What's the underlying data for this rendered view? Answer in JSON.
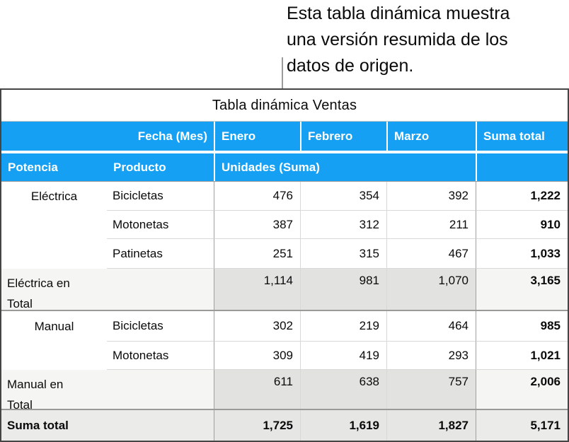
{
  "callout": {
    "lines": [
      "Esta tabla dinámica muestra",
      "una versión resumida de los",
      "datos de origen."
    ]
  },
  "colors": {
    "header_blue": "#16a0f4",
    "header_text": "#ffffff",
    "total_cell_gray": "#e2e2e0",
    "total_side_gray": "#f5f5f3",
    "grand_cell_gray": "#e6e6e4",
    "grand_side_gray": "#ebebe9"
  },
  "table": {
    "title": "Tabla dinámica Ventas",
    "header_row1": {
      "fecha": "Fecha (Mes)",
      "months": [
        "Enero",
        "Febrero",
        "Marzo"
      ],
      "suma": "Suma total"
    },
    "header_row2": {
      "potencia": "Potencia",
      "producto": "Producto",
      "unidades": "Unidades (Suma)",
      "empty": ""
    },
    "rows": [
      {
        "group": "Eléctrica",
        "product": "Bicicletas",
        "values": [
          "476",
          "354",
          "392"
        ],
        "total": "1,222"
      },
      {
        "group": "",
        "product": "Motonetas",
        "values": [
          "387",
          "312",
          "211"
        ],
        "total": "910"
      },
      {
        "group": "",
        "product": "Patinetas",
        "values": [
          "251",
          "315",
          "467"
        ],
        "total": "1,033"
      },
      {
        "label": "Eléctrica en Total",
        "values": [
          "1,114",
          "981",
          "1,070"
        ],
        "total": "3,165"
      },
      {
        "group": "Manual",
        "product": "Bicicletas",
        "values": [
          "302",
          "219",
          "464"
        ],
        "total": "985"
      },
      {
        "group": "",
        "product": "Motonetas",
        "values": [
          "309",
          "419",
          "293"
        ],
        "total": "1,021"
      },
      {
        "label": "Manual en Total",
        "values": [
          "611",
          "638",
          "757"
        ],
        "total": "2,006"
      },
      {
        "label": "Suma total",
        "values": [
          "1,725",
          "1,619",
          "1,827"
        ],
        "total": "5,171"
      }
    ]
  }
}
